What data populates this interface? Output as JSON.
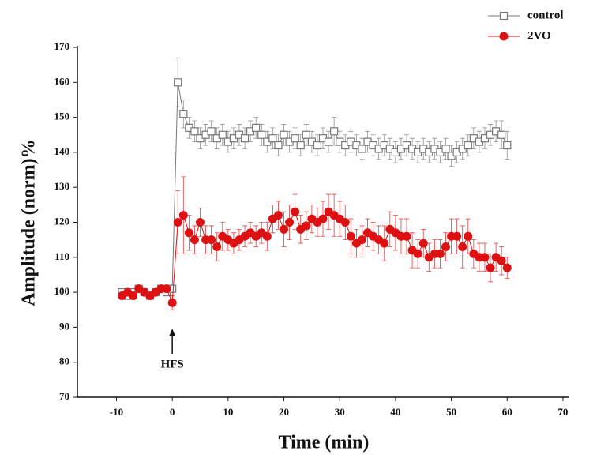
{
  "chart_data": {
    "type": "scatter",
    "xlabel": "Time (min)",
    "ylabel": "Amplitude (norm)%",
    "annotation": {
      "text": "HFS",
      "x": 0
    },
    "x": [
      -9,
      -8,
      -7,
      -6,
      -5,
      -4,
      -3,
      -2,
      -1,
      0,
      1,
      2,
      3,
      4,
      5,
      6,
      7,
      8,
      9,
      10,
      11,
      12,
      13,
      14,
      15,
      16,
      17,
      18,
      19,
      20,
      21,
      22,
      23,
      24,
      25,
      26,
      27,
      28,
      29,
      30,
      31,
      32,
      33,
      34,
      35,
      36,
      37,
      38,
      39,
      40,
      41,
      42,
      43,
      44,
      45,
      46,
      47,
      48,
      49,
      50,
      51,
      52,
      53,
      54,
      55,
      56,
      57,
      58,
      59,
      60
    ],
    "series": [
      {
        "name": "control",
        "color": "#777777",
        "marker": "square",
        "values": [
          100,
          99,
          100,
          101,
          100,
          99,
          100,
          101,
          100,
          101,
          160,
          151,
          147,
          146,
          144,
          145,
          146,
          144,
          145,
          143,
          144,
          145,
          144,
          146,
          147,
          145,
          143,
          144,
          142,
          145,
          143,
          144,
          142,
          145,
          143,
          142,
          144,
          143,
          146,
          143,
          142,
          143,
          142,
          141,
          143,
          142,
          141,
          142,
          141,
          140,
          141,
          142,
          141,
          140,
          141,
          140,
          141,
          140,
          141,
          139,
          140,
          141,
          142,
          144,
          143,
          144,
          145,
          146,
          145,
          142
        ],
        "errors": [
          1,
          1,
          1,
          1,
          1,
          1,
          1,
          1,
          1,
          1,
          7,
          4,
          3,
          3,
          3,
          3,
          3,
          3,
          3,
          3,
          3,
          3,
          3,
          3,
          3,
          3,
          3,
          3,
          3,
          3,
          3,
          3,
          3,
          3,
          3,
          3,
          3,
          3,
          4,
          3,
          3,
          3,
          3,
          3,
          3,
          3,
          3,
          3,
          3,
          3,
          3,
          3,
          3,
          3,
          3,
          3,
          3,
          3,
          3,
          3,
          3,
          3,
          3,
          3,
          3,
          3,
          3,
          3,
          4,
          4
        ]
      },
      {
        "name": "2VO",
        "color": "#dd1111",
        "marker": "circle",
        "values": [
          99,
          100,
          99,
          101,
          100,
          99,
          100,
          101,
          101,
          97,
          120,
          122,
          117,
          115,
          120,
          115,
          115,
          113,
          116,
          115,
          114,
          115,
          116,
          117,
          116,
          117,
          116,
          121,
          122,
          118,
          120,
          123,
          118,
          119,
          121,
          120,
          121,
          123,
          122,
          121,
          120,
          116,
          114,
          115,
          117,
          116,
          115,
          114,
          118,
          117,
          116,
          116,
          112,
          111,
          114,
          110,
          111,
          111,
          113,
          116,
          116,
          113,
          116,
          111,
          110,
          110,
          107,
          110,
          109,
          107
        ],
        "errors": [
          1,
          1,
          1,
          1,
          1,
          1,
          1,
          1,
          1,
          2,
          9,
          11,
          5,
          4,
          4,
          4,
          4,
          4,
          4,
          3,
          3,
          3,
          3,
          3,
          3,
          3,
          4,
          4,
          4,
          5,
          5,
          5,
          4,
          4,
          4,
          4,
          5,
          5,
          6,
          5,
          5,
          5,
          4,
          4,
          4,
          4,
          4,
          5,
          5,
          5,
          5,
          5,
          5,
          4,
          4,
          4,
          4,
          4,
          4,
          5,
          5,
          6,
          5,
          4,
          4,
          4,
          4,
          4,
          4,
          3
        ]
      }
    ],
    "xlim": [
      -17,
      71
    ],
    "xticks": [
      -10,
      0,
      10,
      20,
      30,
      40,
      50,
      60,
      70
    ],
    "ylim": [
      70,
      170
    ],
    "yticks": [
      70,
      80,
      90,
      100,
      110,
      120,
      130,
      140,
      150,
      160,
      170
    ],
    "legend": "top-right"
  }
}
